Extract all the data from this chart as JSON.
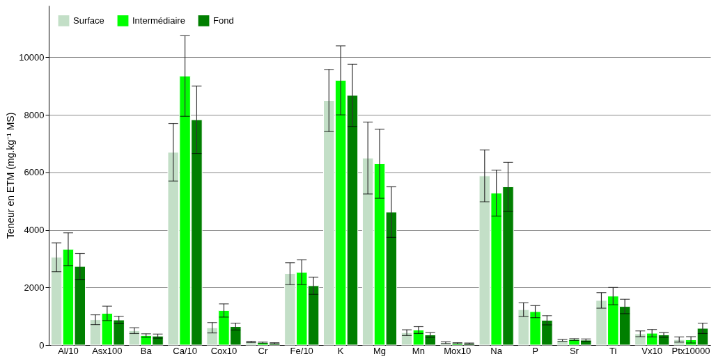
{
  "chart_data": {
    "type": "bar",
    "ylabel": "Teneur en ETM (mg.kg⁻¹ MS)",
    "categories": [
      "Al/10",
      "Asx100",
      "Ba",
      "Ca/10",
      "Cox10",
      "Cr",
      "Fe/10",
      "K",
      "Mg",
      "Mn",
      "Mox10",
      "Na",
      "P",
      "Sr",
      "Ti",
      "Vx10",
      "Ptx10000"
    ],
    "series": [
      {
        "name": "Surface",
        "color": "#c3dfc7",
        "values": [
          3050,
          880,
          500,
          6700,
          600,
          110,
          2480,
          8500,
          6500,
          430,
          80,
          5880,
          1230,
          160,
          1550,
          390,
          190
        ],
        "errors": [
          500,
          170,
          100,
          1000,
          180,
          20,
          380,
          1080,
          1250,
          100,
          30,
          900,
          240,
          30,
          270,
          100,
          90
        ]
      },
      {
        "name": "Intermédiaire",
        "color": "#00ff00",
        "values": [
          3330,
          1100,
          330,
          9350,
          1200,
          80,
          2530,
          9200,
          6300,
          520,
          60,
          5280,
          1160,
          190,
          1700,
          410,
          180
        ],
        "errors": [
          570,
          250,
          60,
          1400,
          230,
          20,
          430,
          1200,
          1200,
          120,
          20,
          800,
          210,
          30,
          300,
          130,
          110
        ]
      },
      {
        "name": "Fond",
        "color": "#007f00",
        "values": [
          2730,
          870,
          310,
          7830,
          640,
          60,
          2060,
          8680,
          4620,
          350,
          50,
          5500,
          860,
          170,
          1340,
          350,
          580
        ],
        "errors": [
          450,
          130,
          70,
          1170,
          120,
          20,
          300,
          1080,
          880,
          80,
          20,
          850,
          160,
          40,
          250,
          80,
          180
        ]
      }
    ],
    "ylim": [
      0,
      11800
    ],
    "yticks": [
      0,
      2000,
      4000,
      6000,
      8000,
      10000
    ],
    "grid": "y",
    "legend": "top left"
  }
}
